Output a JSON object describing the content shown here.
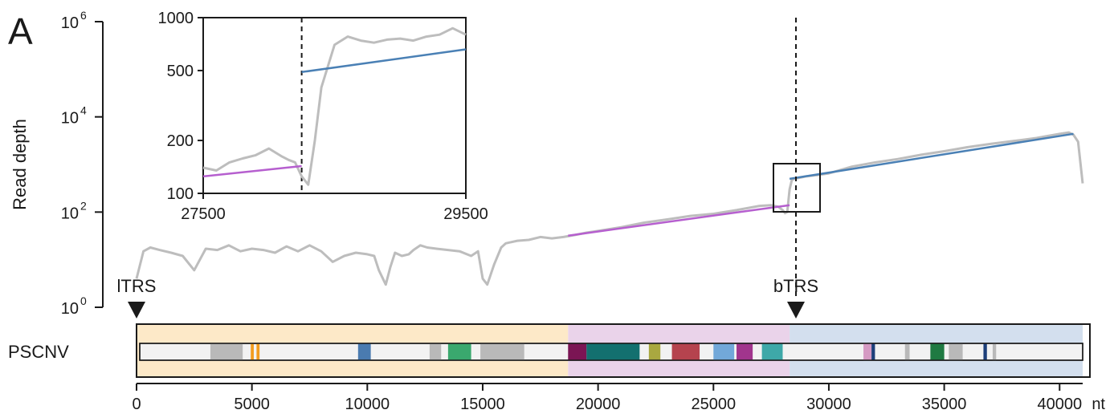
{
  "panel_label": "A",
  "main": {
    "ylabel": "Read depth",
    "y_ticks": [
      {
        "value": 1,
        "base": "10",
        "exp": "0"
      },
      {
        "value": 100,
        "base": "10",
        "exp": "2"
      },
      {
        "value": 10000,
        "base": "10",
        "exp": "4"
      },
      {
        "value": 1000000,
        "base": "10",
        "exp": "6"
      }
    ],
    "x_ticks": [
      {
        "value": 0,
        "label": "0"
      },
      {
        "value": 5000,
        "label": "5000"
      },
      {
        "value": 10000,
        "label": "10000"
      },
      {
        "value": 15000,
        "label": "15000"
      },
      {
        "value": 20000,
        "label": "20000"
      },
      {
        "value": 25000,
        "label": "25000"
      },
      {
        "value": 30000,
        "label": "30000"
      },
      {
        "value": 35000,
        "label": "35000"
      },
      {
        "value": 40000,
        "label": "40000"
      }
    ],
    "x_unit": "nt"
  },
  "annotations": {
    "ltrs": {
      "label": "lTRS",
      "position": 0
    },
    "btrs": {
      "label": "bTRS",
      "position": 28300
    }
  },
  "genome": {
    "label": "PSCNV",
    "regions": [
      {
        "start": 0,
        "end": 18700,
        "color": "#fde9c8"
      },
      {
        "start": 18700,
        "end": 28300,
        "color": "#ead3ea"
      },
      {
        "start": 28300,
        "end": 41000,
        "color": "#d3dfee"
      }
    ],
    "features": [
      {
        "start": 3200,
        "end": 4600,
        "color": "#b9b9b9"
      },
      {
        "start": 4950,
        "end": 5080,
        "color": "#f39c1e"
      },
      {
        "start": 5200,
        "end": 5330,
        "color": "#f39c1e"
      },
      {
        "start": 9600,
        "end": 10150,
        "color": "#4a7bb0"
      },
      {
        "start": 12700,
        "end": 13200,
        "color": "#b9b9b9"
      },
      {
        "start": 13500,
        "end": 14500,
        "color": "#3aa86e"
      },
      {
        "start": 14900,
        "end": 16800,
        "color": "#b9b9b9"
      },
      {
        "start": 18700,
        "end": 19500,
        "color": "#7b1554"
      },
      {
        "start": 19500,
        "end": 21800,
        "color": "#13706f"
      },
      {
        "start": 22200,
        "end": 22700,
        "color": "#a9a840"
      },
      {
        "start": 23200,
        "end": 24400,
        "color": "#b5434e"
      },
      {
        "start": 25000,
        "end": 25900,
        "color": "#72a8d9"
      },
      {
        "start": 26000,
        "end": 26700,
        "color": "#a1358d"
      },
      {
        "start": 27100,
        "end": 28000,
        "color": "#3ea8a8"
      },
      {
        "start": 31500,
        "end": 31850,
        "color": "#d59ac3"
      },
      {
        "start": 31850,
        "end": 32000,
        "color": "#1d3f7a"
      },
      {
        "start": 33300,
        "end": 33500,
        "color": "#b9b9b9"
      },
      {
        "start": 34400,
        "end": 35000,
        "color": "#1f7a42"
      },
      {
        "start": 35200,
        "end": 35800,
        "color": "#b9b9b9"
      },
      {
        "start": 36700,
        "end": 36850,
        "color": "#1d3f7a"
      },
      {
        "start": 37100,
        "end": 37250,
        "color": "#b9b9b9"
      }
    ]
  },
  "chart_data": [
    {
      "type": "line",
      "title": "",
      "ylabel": "Read depth",
      "xlabel": "",
      "y_scale": "log",
      "xlim": [
        0,
        41000
      ],
      "ylim": [
        1,
        1000000
      ],
      "series": [
        {
          "color": "#bdbdbd",
          "x": [
            0,
            300,
            600,
            1000,
            1500,
            2000,
            2500,
            3000,
            3500,
            4000,
            4500,
            5000,
            5500,
            6000,
            6500,
            7000,
            7500,
            8000,
            8500,
            9000,
            9500,
            10000,
            10300,
            10500,
            10800,
            11000,
            11200,
            11500,
            11800,
            12000,
            12300,
            12600,
            13000,
            13500,
            14000,
            14500,
            14800,
            15000,
            15200,
            15500,
            15800,
            16000,
            16500,
            17000,
            17500,
            18000,
            18500,
            19000,
            19500,
            20000,
            21000,
            22000,
            23000,
            24000,
            25000,
            26000,
            27000,
            27500,
            27800,
            28000,
            28100,
            28200,
            28300,
            28400,
            28500,
            29000,
            29500,
            30000,
            31000,
            32000,
            33000,
            34000,
            35000,
            36000,
            37000,
            38000,
            39000,
            40000,
            40400,
            40600,
            40800,
            41000
          ],
          "y": [
            4,
            15,
            18,
            16,
            14,
            12,
            6,
            17,
            16,
            20,
            15,
            17,
            16,
            14,
            19,
            15,
            20,
            15,
            9,
            12,
            14,
            13,
            12,
            6,
            3,
            7,
            14,
            12,
            13,
            16,
            20,
            18,
            17,
            16,
            15,
            12,
            15,
            4,
            3,
            8,
            18,
            22,
            25,
            26,
            30,
            28,
            30,
            33,
            37,
            40,
            48,
            60,
            70,
            83,
            92,
            110,
            135,
            140,
            130,
            110,
            95,
            100,
            300,
            480,
            500,
            560,
            600,
            650,
            900,
            1100,
            1300,
            1600,
            1900,
            2300,
            2700,
            3100,
            3600,
            4400,
            4700,
            4200,
            3000,
            400
          ]
        },
        {
          "color": "#b65fcf",
          "x": [
            18700,
            28300
          ],
          "y": [
            32,
            140
          ]
        },
        {
          "color": "#4a80b5",
          "x": [
            28300,
            40600
          ],
          "y": [
            500,
            4400
          ]
        }
      ]
    },
    {
      "type": "line",
      "title": "",
      "xlabel": "",
      "ylabel": "",
      "y_scale": "log",
      "xlim": [
        27500,
        29500
      ],
      "ylim": [
        100,
        1000
      ],
      "x_ticks": [
        "27500",
        "29500"
      ],
      "y_ticks": [
        "100",
        "200",
        "500",
        "1000"
      ],
      "series": [
        {
          "color": "#bdbdbd",
          "x": [
            27500,
            27600,
            27700,
            27800,
            27900,
            28000,
            28100,
            28150,
            28200,
            28250,
            28300,
            28350,
            28400,
            28500,
            28600,
            28700,
            28800,
            28900,
            29000,
            29100,
            29200,
            29300,
            29400,
            29500
          ],
          "y": [
            140,
            135,
            150,
            158,
            165,
            180,
            162,
            155,
            150,
            125,
            112,
            200,
            400,
            700,
            780,
            740,
            720,
            750,
            760,
            740,
            780,
            800,
            870,
            800
          ]
        },
        {
          "color": "#b65fcf",
          "x": [
            27500,
            28250
          ],
          "y": [
            125,
            143
          ]
        },
        {
          "color": "#4a80b5",
          "x": [
            28250,
            29500
          ],
          "y": [
            490,
            660
          ]
        }
      ]
    }
  ]
}
